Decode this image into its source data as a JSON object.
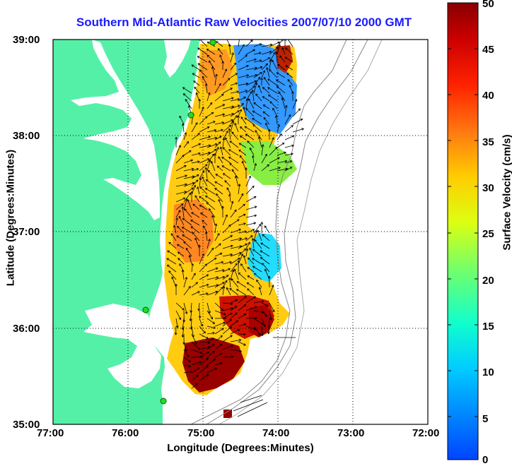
{
  "title": "Southern Mid-Atlantic Raw Velocities 2007/07/10 2000 GMT",
  "xlabel": "Longitude (Degrees:Minutes)",
  "ylabel": "Latitude (Degrees:Minutes)",
  "colorbar_label": "Surface Velocity (cm/s)",
  "x_ticks": [
    "77:00",
    "76:00",
    "75:00",
    "74:00",
    "73:00",
    "72:00"
  ],
  "y_ticks": [
    "39:00",
    "38:00",
    "37:00",
    "36:00",
    "35:00"
  ],
  "colorbar_ticks": [
    "50",
    "45",
    "40",
    "35",
    "30",
    "25",
    "20",
    "15",
    "10",
    "5",
    "0"
  ],
  "colors": {
    "land": "#55f0a8",
    "title": "#1a1aff",
    "station": "#22dd22"
  },
  "map": {
    "lon_range": [
      -77,
      -72
    ],
    "lat_range": [
      35,
      39
    ],
    "color_range_cm_s": [
      0,
      50
    ]
  }
}
